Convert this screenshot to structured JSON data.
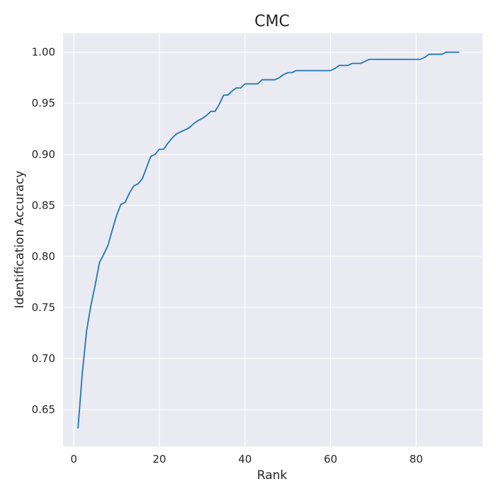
{
  "chart_data": {
    "type": "line",
    "title": "CMC",
    "xlabel": "Rank",
    "ylabel": "Identification Accuracy",
    "xlim": [
      -2.5,
      95.5
    ],
    "ylim": [
      0.614,
      1.0185
    ],
    "xticks": [
      0,
      20,
      40,
      60,
      80
    ],
    "yticks": [
      0.65,
      0.7,
      0.75,
      0.8,
      0.85,
      0.9,
      0.95,
      1.0
    ],
    "xtick_labels": [
      "0",
      "20",
      "40",
      "60",
      "80"
    ],
    "ytick_labels": [
      "0.65",
      "0.70",
      "0.75",
      "0.80",
      "0.85",
      "0.90",
      "0.95",
      "1.00"
    ],
    "grid": true,
    "series": [
      {
        "color": "#1f77b4",
        "x": [
          1,
          2,
          3,
          4,
          5,
          6,
          7,
          8,
          9,
          10,
          11,
          12,
          13,
          14,
          15,
          16,
          17,
          18,
          19,
          20,
          21,
          22,
          23,
          24,
          25,
          26,
          27,
          28,
          29,
          30,
          31,
          32,
          33,
          34,
          35,
          36,
          37,
          38,
          39,
          40,
          41,
          42,
          43,
          44,
          45,
          46,
          47,
          48,
          49,
          50,
          51,
          52,
          53,
          54,
          55,
          56,
          57,
          58,
          59,
          60,
          61,
          62,
          63,
          64,
          65,
          66,
          67,
          68,
          69,
          70,
          71,
          72,
          73,
          74,
          75,
          76,
          77,
          78,
          79,
          80,
          81,
          82,
          83,
          84,
          85,
          86,
          87,
          88,
          89,
          90
        ],
        "y": [
          0.632,
          0.686,
          0.727,
          0.752,
          0.772,
          0.794,
          0.802,
          0.811,
          0.826,
          0.84,
          0.851,
          0.853,
          0.862,
          0.869,
          0.871,
          0.876,
          0.887,
          0.898,
          0.9,
          0.905,
          0.905,
          0.911,
          0.916,
          0.92,
          0.922,
          0.924,
          0.926,
          0.93,
          0.933,
          0.935,
          0.938,
          0.942,
          0.942,
          0.949,
          0.958,
          0.958,
          0.962,
          0.965,
          0.965,
          0.969,
          0.969,
          0.969,
          0.969,
          0.973,
          0.973,
          0.973,
          0.973,
          0.975,
          0.978,
          0.98,
          0.98,
          0.982,
          0.982,
          0.982,
          0.982,
          0.982,
          0.982,
          0.982,
          0.982,
          0.982,
          0.984,
          0.987,
          0.987,
          0.987,
          0.989,
          0.989,
          0.989,
          0.991,
          0.993,
          0.993,
          0.993,
          0.993,
          0.993,
          0.993,
          0.993,
          0.993,
          0.993,
          0.993,
          0.993,
          0.993,
          0.993,
          0.995,
          0.998,
          0.998,
          0.998,
          0.998,
          1.0,
          1.0,
          1.0,
          1.0
        ]
      }
    ]
  }
}
